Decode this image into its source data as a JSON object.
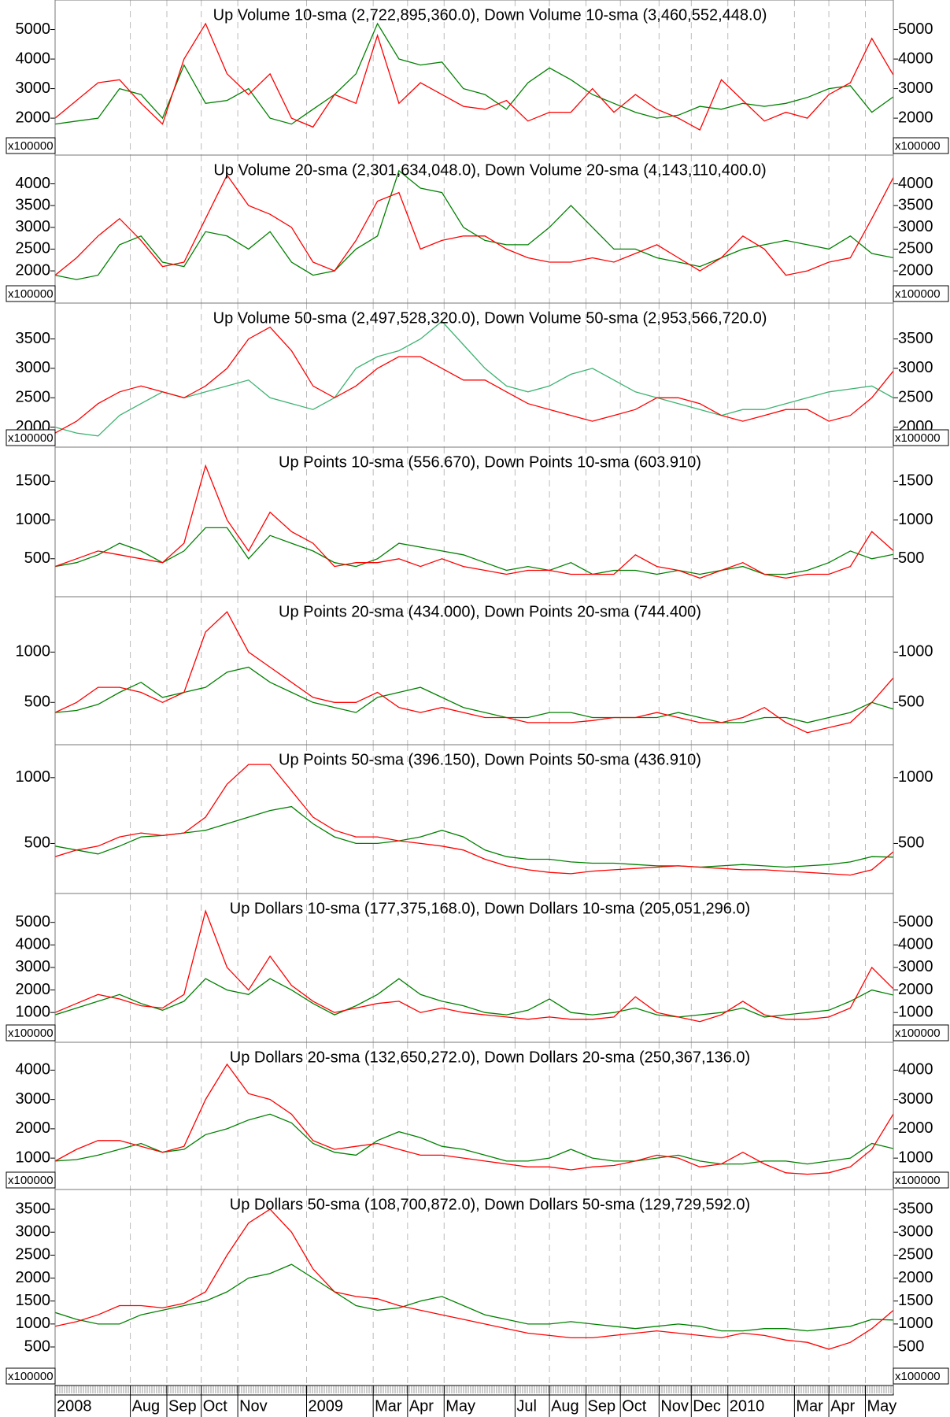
{
  "chart_data": [
    {
      "type": "line",
      "title": "Up Volume 10-sma (2,722,895,360.0), Down Volume 10-sma (3,460,552,448.0)",
      "scale_label": "x100000",
      "xlim": [
        0,
        39
      ],
      "ylim": [
        750,
        6000
      ],
      "yticks": [
        2000,
        3000,
        4000,
        5000
      ],
      "series": [
        {
          "color": "#008000",
          "values": [
            1800,
            1900,
            2000,
            3000,
            2800,
            2000,
            3800,
            2500,
            2600,
            3000,
            2000,
            1800,
            2300,
            2800,
            3500,
            5200,
            4000,
            3800,
            3900,
            3000,
            2800,
            2300,
            3200,
            3700,
            3300,
            2800,
            2500,
            2200,
            2000,
            2100,
            2400,
            2300,
            2500,
            2400,
            2500,
            2700,
            3000,
            3100,
            2200,
            2723
          ]
        },
        {
          "color": "#ff0000",
          "values": [
            2000,
            2600,
            3200,
            3300,
            2500,
            1800,
            4000,
            5200,
            3500,
            2800,
            3500,
            2000,
            1700,
            2800,
            2500,
            4800,
            2500,
            3200,
            2800,
            2400,
            2300,
            2600,
            1900,
            2200,
            2200,
            3000,
            2200,
            2800,
            2300,
            2000,
            1600,
            3300,
            2600,
            1900,
            2200,
            2000,
            2800,
            3200,
            4700,
            3461
          ]
        }
      ]
    },
    {
      "type": "line",
      "title": "Up Volume 20-sma (2,301,634,048.0), Down Volume 20-sma (4,143,110,400.0)",
      "scale_label": "x100000",
      "xlim": [
        0,
        39
      ],
      "ylim": [
        1260,
        4660
      ],
      "yticks": [
        2000,
        2500,
        3000,
        3500,
        4000
      ],
      "series": [
        {
          "color": "#008000",
          "values": [
            1900,
            1800,
            1900,
            2600,
            2800,
            2200,
            2100,
            2900,
            2800,
            2500,
            2900,
            2200,
            1900,
            2000,
            2500,
            2800,
            4300,
            3900,
            3800,
            3000,
            2700,
            2600,
            2600,
            3000,
            3500,
            3000,
            2500,
            2500,
            2300,
            2200,
            2100,
            2300,
            2500,
            2600,
            2700,
            2600,
            2500,
            2800,
            2400,
            2302
          ]
        },
        {
          "color": "#ff0000",
          "values": [
            1900,
            2300,
            2800,
            3200,
            2700,
            2100,
            2200,
            3200,
            4200,
            3500,
            3300,
            3000,
            2200,
            2000,
            2700,
            3600,
            3800,
            2500,
            2700,
            2800,
            2800,
            2500,
            2300,
            2200,
            2200,
            2300,
            2200,
            2400,
            2600,
            2300,
            2000,
            2300,
            2800,
            2500,
            1900,
            2000,
            2200,
            2300,
            3200,
            4143
          ]
        }
      ]
    },
    {
      "type": "line",
      "title": "Up Volume 50-sma (2,497,528,320.0), Down Volume 50-sma (2,953,566,720.0)",
      "scale_label": "x100000",
      "xlim": [
        0,
        39
      ],
      "ylim": [
        1660,
        4110
      ],
      "yticks": [
        2000,
        2500,
        3000,
        3500
      ],
      "series": [
        {
          "color": "#3cb371",
          "values": [
            2000,
            1900,
            1850,
            2200,
            2400,
            2600,
            2500,
            2600,
            2700,
            2800,
            2500,
            2400,
            2300,
            2500,
            3000,
            3200,
            3300,
            3500,
            3800,
            3400,
            3000,
            2700,
            2600,
            2700,
            2900,
            3000,
            2800,
            2600,
            2500,
            2400,
            2300,
            2200,
            2300,
            2300,
            2400,
            2500,
            2600,
            2650,
            2700,
            2498
          ]
        },
        {
          "color": "#ff0000",
          "values": [
            1900,
            2100,
            2400,
            2600,
            2700,
            2600,
            2500,
            2700,
            3000,
            3500,
            3700,
            3300,
            2700,
            2500,
            2700,
            3000,
            3200,
            3200,
            3000,
            2800,
            2800,
            2600,
            2400,
            2300,
            2200,
            2100,
            2200,
            2300,
            2500,
            2500,
            2400,
            2200,
            2100,
            2200,
            2300,
            2300,
            2100,
            2200,
            2500,
            2954
          ]
        }
      ]
    },
    {
      "type": "line",
      "title": "Up Points 10-sma (556.670), Down Points 10-sma (603.910)",
      "xlim": [
        0,
        39
      ],
      "ylim": [
        10,
        1940
      ],
      "yticks": [
        500,
        1000,
        1500
      ],
      "series": [
        {
          "color": "#008000",
          "values": [
            400,
            450,
            550,
            700,
            600,
            450,
            600,
            900,
            900,
            500,
            800,
            700,
            600,
            450,
            400,
            500,
            700,
            650,
            600,
            550,
            450,
            350,
            400,
            350,
            450,
            300,
            350,
            350,
            300,
            350,
            300,
            350,
            400,
            300,
            300,
            350,
            450,
            600,
            500,
            557
          ]
        },
        {
          "color": "#ff0000",
          "values": [
            400,
            500,
            600,
            550,
            500,
            450,
            700,
            1700,
            1000,
            600,
            1100,
            850,
            700,
            400,
            450,
            450,
            500,
            400,
            500,
            400,
            350,
            300,
            350,
            350,
            300,
            300,
            300,
            550,
            400,
            350,
            250,
            350,
            450,
            300,
            250,
            300,
            300,
            400,
            850,
            604
          ]
        }
      ]
    },
    {
      "type": "line",
      "title": "Up Points 20-sma (434.000), Down Points 20-sma (744.400)",
      "xlim": [
        0,
        39
      ],
      "ylim": [
        80,
        1550
      ],
      "yticks": [
        500,
        1000
      ],
      "series": [
        {
          "color": "#008000",
          "values": [
            400,
            420,
            480,
            600,
            700,
            550,
            600,
            650,
            800,
            850,
            700,
            600,
            500,
            450,
            400,
            550,
            600,
            650,
            550,
            450,
            400,
            350,
            350,
            400,
            400,
            350,
            350,
            350,
            350,
            400,
            350,
            300,
            300,
            350,
            350,
            300,
            350,
            400,
            500,
            434
          ]
        },
        {
          "color": "#ff0000",
          "values": [
            400,
            500,
            650,
            650,
            600,
            500,
            600,
            1200,
            1400,
            1000,
            850,
            700,
            550,
            500,
            500,
            600,
            450,
            400,
            450,
            400,
            350,
            350,
            300,
            300,
            300,
            320,
            350,
            350,
            400,
            350,
            300,
            300,
            350,
            450,
            300,
            200,
            250,
            300,
            500,
            744
          ]
        }
      ]
    },
    {
      "type": "line",
      "title": "Up Points 50-sma (396.150), Down Points 50-sma (436.910)",
      "xlim": [
        0,
        39
      ],
      "ylim": [
        120,
        1250
      ],
      "yticks": [
        500,
        1000
      ],
      "series": [
        {
          "color": "#008000",
          "values": [
            480,
            450,
            420,
            480,
            550,
            560,
            580,
            600,
            650,
            700,
            750,
            780,
            650,
            550,
            500,
            500,
            520,
            550,
            600,
            550,
            450,
            400,
            380,
            380,
            360,
            350,
            350,
            340,
            330,
            330,
            320,
            330,
            340,
            330,
            320,
            330,
            340,
            360,
            400,
            396
          ]
        },
        {
          "color": "#ff0000",
          "values": [
            400,
            450,
            480,
            550,
            580,
            560,
            580,
            700,
            950,
            1100,
            1100,
            900,
            700,
            600,
            550,
            550,
            520,
            500,
            480,
            450,
            380,
            330,
            300,
            280,
            270,
            290,
            300,
            310,
            320,
            330,
            320,
            310,
            300,
            300,
            290,
            280,
            270,
            260,
            300,
            437
          ]
        }
      ]
    },
    {
      "type": "line",
      "title": "Up Dollars 10-sma (177,375,168.0), Down Dollars 10-sma (205,051,296.0)",
      "scale_label": "x100000",
      "xlim": [
        0,
        39
      ],
      "ylim": [
        -320,
        6280
      ],
      "yticks": [
        1000,
        2000,
        3000,
        4000,
        5000
      ],
      "series": [
        {
          "color": "#008000",
          "values": [
            900,
            1200,
            1500,
            1800,
            1400,
            1100,
            1500,
            2500,
            2000,
            1800,
            2500,
            2000,
            1400,
            900,
            1300,
            1800,
            2500,
            1800,
            1500,
            1300,
            1000,
            900,
            1100,
            1600,
            1000,
            900,
            1000,
            1200,
            900,
            800,
            900,
            1000,
            1200,
            800,
            900,
            1000,
            1100,
            1500,
            2000,
            1774
          ]
        },
        {
          "color": "#ff0000",
          "values": [
            1000,
            1400,
            1800,
            1600,
            1300,
            1200,
            1800,
            5500,
            3000,
            2000,
            3500,
            2200,
            1500,
            1000,
            1200,
            1400,
            1500,
            1000,
            1200,
            1000,
            900,
            800,
            700,
            800,
            700,
            700,
            800,
            1700,
            1000,
            800,
            600,
            900,
            1500,
            900,
            700,
            700,
            800,
            1200,
            3000,
            2051
          ]
        }
      ]
    },
    {
      "type": "line",
      "title": "Up Dollars 20-sma (132,650,272.0), Down Dollars 20-sma (250,367,136.0)",
      "scale_label": "x100000",
      "xlim": [
        0,
        39
      ],
      "ylim": [
        -70,
        4950
      ],
      "yticks": [
        1000,
        2000,
        3000,
        4000
      ],
      "series": [
        {
          "color": "#008000",
          "values": [
            900,
            950,
            1100,
            1300,
            1500,
            1200,
            1300,
            1800,
            2000,
            2300,
            2500,
            2200,
            1500,
            1200,
            1100,
            1600,
            1900,
            1700,
            1400,
            1300,
            1100,
            900,
            900,
            1000,
            1300,
            1000,
            900,
            900,
            1000,
            1100,
            900,
            800,
            800,
            900,
            900,
            800,
            900,
            1000,
            1500,
            1327
          ]
        },
        {
          "color": "#ff0000",
          "values": [
            900,
            1300,
            1600,
            1600,
            1400,
            1200,
            1400,
            3000,
            4200,
            3200,
            3000,
            2500,
            1600,
            1300,
            1400,
            1500,
            1300,
            1100,
            1100,
            1000,
            900,
            800,
            700,
            700,
            600,
            700,
            750,
            900,
            1100,
            1000,
            700,
            800,
            1200,
            800,
            500,
            450,
            500,
            700,
            1300,
            2504
          ]
        }
      ]
    },
    {
      "type": "line",
      "title": "Up Dollars 50-sma (108,700,872.0), Down Dollars 50-sma (129,729,592.0)",
      "scale_label": "x100000",
      "xlim": [
        0,
        39
      ],
      "ylim": [
        -340,
        3930
      ],
      "yticks": [
        500,
        1000,
        1500,
        2000,
        2500,
        3000,
        3500
      ],
      "series": [
        {
          "color": "#008000",
          "values": [
            1250,
            1100,
            1000,
            1000,
            1200,
            1300,
            1400,
            1500,
            1700,
            2000,
            2100,
            2300,
            2000,
            1700,
            1400,
            1300,
            1350,
            1500,
            1600,
            1400,
            1200,
            1100,
            1000,
            1000,
            1050,
            1000,
            950,
            900,
            950,
            1000,
            950,
            850,
            850,
            900,
            900,
            850,
            900,
            950,
            1100,
            1087
          ]
        },
        {
          "color": "#ff0000",
          "values": [
            950,
            1050,
            1200,
            1400,
            1400,
            1350,
            1450,
            1700,
            2500,
            3200,
            3500,
            3000,
            2200,
            1700,
            1600,
            1550,
            1400,
            1300,
            1200,
            1100,
            1000,
            900,
            800,
            750,
            700,
            700,
            750,
            800,
            850,
            800,
            750,
            700,
            800,
            750,
            650,
            600,
            450,
            600,
            900,
            1297
          ]
        }
      ],
      "xticks": [
        {
          "value": 0,
          "label": "2008"
        },
        {
          "value": 3.5,
          "label": "Aug"
        },
        {
          "value": 5.2,
          "label": "Sep"
        },
        {
          "value": 6.8,
          "label": "Oct"
        },
        {
          "value": 8.5,
          "label": "Nov"
        },
        {
          "value": 11.7,
          "label": "2009"
        },
        {
          "value": 14.8,
          "label": "Mar"
        },
        {
          "value": 16.4,
          "label": "Apr"
        },
        {
          "value": 18.1,
          "label": "May"
        },
        {
          "value": 21.4,
          "label": "Jul"
        },
        {
          "value": 23.0,
          "label": "Aug"
        },
        {
          "value": 24.7,
          "label": "Sep"
        },
        {
          "value": 26.3,
          "label": "Oct"
        },
        {
          "value": 28.1,
          "label": "Nov"
        },
        {
          "value": 29.6,
          "label": "Dec"
        },
        {
          "value": 31.3,
          "label": "2010"
        },
        {
          "value": 34.4,
          "label": "Mar"
        },
        {
          "value": 36.0,
          "label": "Apr"
        },
        {
          "value": 37.7,
          "label": "May"
        }
      ]
    }
  ]
}
